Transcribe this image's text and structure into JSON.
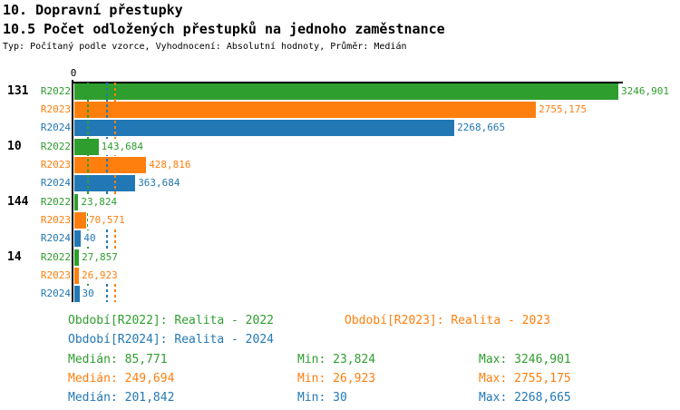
{
  "header": {
    "title": "10. Dopravní přestupky",
    "subtitle": "10.5 Počet odložených přestupků na jednoho zaměstnance",
    "meta": "Typ: Počítaný podle vzorce, Vyhodnocení: Absolutní hodnoty, Průměr: Medián"
  },
  "chart_data": {
    "type": "bar",
    "orientation": "horizontal",
    "x_axis": {
      "zero_label": "0",
      "min": 0,
      "max": 3246.901
    },
    "grid": "median-dashed-lines-only",
    "series": [
      {
        "name": "R2022",
        "color": "#2e9e2e"
      },
      {
        "name": "R2023",
        "color": "#ff7f0e"
      },
      {
        "name": "R2024",
        "color": "#2278b5"
      }
    ],
    "groups": [
      {
        "label": "131",
        "values": [
          3246.901,
          2755.175,
          2268.665
        ],
        "value_labels": [
          "3246,901",
          "2755,175",
          "2268,665"
        ]
      },
      {
        "label": "10",
        "values": [
          143.684,
          428.816,
          363.684
        ],
        "value_labels": [
          "143,684",
          "428,816",
          "363,684"
        ]
      },
      {
        "label": "144",
        "values": [
          23.824,
          70.571,
          40
        ],
        "value_labels": [
          "23,824",
          "70,571",
          "40"
        ]
      },
      {
        "label": "14",
        "values": [
          27.857,
          26.923,
          30
        ],
        "value_labels": [
          "27,857",
          "26,923",
          "30"
        ]
      }
    ],
    "median_lines": [
      {
        "series": "R2022",
        "value": 85.771
      },
      {
        "series": "R2023",
        "value": 249.694
      },
      {
        "series": "R2024",
        "value": 201.842
      }
    ]
  },
  "legend": {
    "items": [
      {
        "series": "R2022",
        "text": "Období[R2022]: Realita - 2022"
      },
      {
        "series": "R2023",
        "text": "Období[R2023]: Realita - 2023"
      },
      {
        "series": "R2024",
        "text": "Období[R2024]: Realita - 2024"
      }
    ],
    "stats": [
      {
        "series": "R2022",
        "median": "Medián: 85,771",
        "min": "Min: 23,824",
        "max": "Max: 3246,901"
      },
      {
        "series": "R2023",
        "median": "Medián: 249,694",
        "min": "Min: 26,923",
        "max": "Max: 2755,175"
      },
      {
        "series": "R2024",
        "median": "Medián: 201,842",
        "min": "Min: 30",
        "max": "Max: 2268,665"
      }
    ]
  }
}
